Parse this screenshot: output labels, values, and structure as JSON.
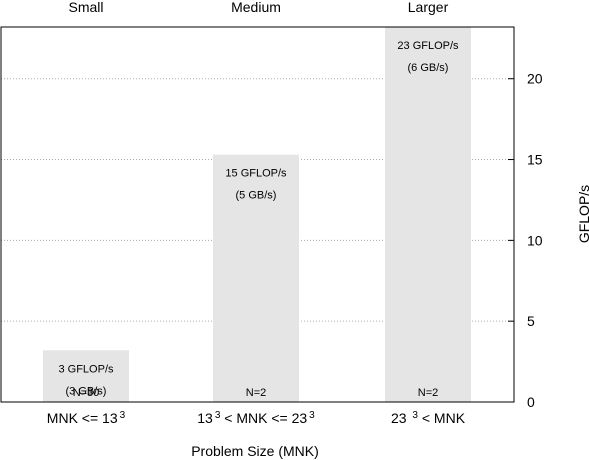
{
  "chart_data": {
    "type": "bar",
    "group_titles": [
      "Small",
      "Medium",
      "Larger"
    ],
    "categories": [
      {
        "parts": [
          {
            "t": "MNK <= 13",
            "sup": false
          },
          {
            "t": "3",
            "sup": true
          }
        ]
      },
      {
        "parts": [
          {
            "t": "13",
            "sup": false
          },
          {
            "t": "3",
            "sup": true
          },
          {
            "t": " < MNK <= 23",
            "sup": false
          },
          {
            "t": "3",
            "sup": true
          }
        ]
      },
      {
        "parts": [
          {
            "t": "23 ",
            "sup": false
          },
          {
            "t": "3",
            "sup": true
          },
          {
            "t": " < MNK",
            "sup": false
          }
        ]
      }
    ],
    "values": [
      3.2,
      15.3,
      23.2
    ],
    "value_labels": [
      "3 GFLOP/s",
      "15 GFLOP/s",
      "23 GFLOP/s"
    ],
    "bandwidth_labels": [
      "(3 GB/s)",
      "(5 GB/s)",
      "(6 GB/s)"
    ],
    "count_labels": [
      "N=30",
      "N=2",
      "N=2"
    ],
    "xlabel": "Problem Size (MNK)",
    "ylabel": "GFLOP/s",
    "ylim": [
      0,
      23.2
    ],
    "yticks": [
      0,
      5,
      10,
      15,
      20
    ],
    "y_axis_side": "right",
    "grid": "horizontal dotted",
    "bar_color": "#e5e5e5",
    "grid_color": "#aaaaaa"
  }
}
